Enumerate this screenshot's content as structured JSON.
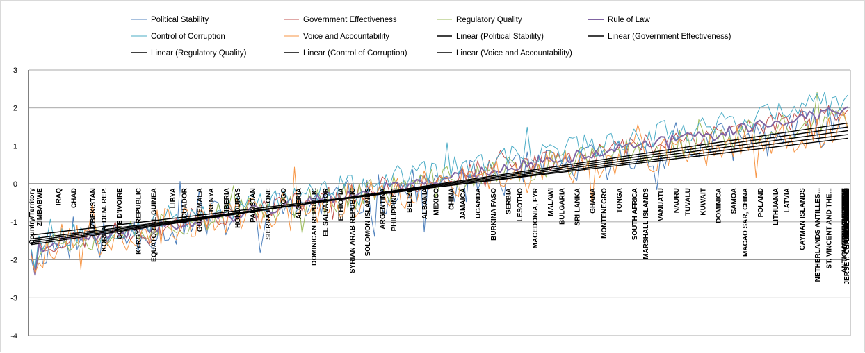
{
  "chart_data": {
    "type": "line",
    "title": "",
    "xlabel": "",
    "ylabel": "",
    "ylim": [
      -4,
      3
    ],
    "yticks": [
      3,
      2,
      1,
      0,
      -1,
      -2,
      -3,
      -4
    ],
    "grid": true,
    "legend": "top",
    "n_points": 215,
    "categories": [
      {
        "i": 0,
        "label": "Country/Territory"
      },
      {
        "i": 2,
        "label": "ZIMBABWE"
      },
      {
        "i": 7,
        "label": "IRAQ"
      },
      {
        "i": 11,
        "label": "CHAD"
      },
      {
        "i": 16,
        "label": "UZBEKISTAN"
      },
      {
        "i": 19,
        "label": "KOREA, DEM. REP."
      },
      {
        "i": 23,
        "label": "COTE D'IVOIRE"
      },
      {
        "i": 28,
        "label": "KYRGYZ REPUBLIC"
      },
      {
        "i": 32,
        "label": "EQUATORIAL GUINEA"
      },
      {
        "i": 37,
        "label": "LIBYA"
      },
      {
        "i": 40,
        "label": "ECUADOR"
      },
      {
        "i": 44,
        "label": "GUATEMALA"
      },
      {
        "i": 47,
        "label": "KENYA"
      },
      {
        "i": 51,
        "label": "LIBERIA"
      },
      {
        "i": 54,
        "label": "HONDURAS"
      },
      {
        "i": 58,
        "label": "PAKISTAN"
      },
      {
        "i": 62,
        "label": "SIERRA LEONE"
      },
      {
        "i": 66,
        "label": "TOGO"
      },
      {
        "i": 70,
        "label": "ALGERIA"
      },
      {
        "i": 74,
        "label": "DOMINICAN REPUBLIC"
      },
      {
        "i": 77,
        "label": "EL SALVADOR"
      },
      {
        "i": 81,
        "label": "ETHIOPIA"
      },
      {
        "i": 84,
        "label": "SYRIAN ARAB REPUBLIC"
      },
      {
        "i": 88,
        "label": "SOLOMON ISLANDS"
      },
      {
        "i": 92,
        "label": "ARGENTINA"
      },
      {
        "i": 95,
        "label": "PHILIPPINES"
      },
      {
        "i": 99,
        "label": "BELIZE"
      },
      {
        "i": 103,
        "label": "ALBANIA"
      },
      {
        "i": 106,
        "label": "MEXICO"
      },
      {
        "i": 110,
        "label": "CHINA"
      },
      {
        "i": 113,
        "label": "JAMAICA"
      },
      {
        "i": 117,
        "label": "UGANDA"
      },
      {
        "i": 121,
        "label": "BURKINA FASO"
      },
      {
        "i": 125,
        "label": "SERBIA"
      },
      {
        "i": 128,
        "label": "LESOTHO"
      },
      {
        "i": 132,
        "label": "MACEDONIA, FYR"
      },
      {
        "i": 136,
        "label": "MALAWI"
      },
      {
        "i": 139,
        "label": "BULGARIA"
      },
      {
        "i": 143,
        "label": "SRI LANKA"
      },
      {
        "i": 147,
        "label": "GHANA"
      },
      {
        "i": 150,
        "label": "MONTENEGRO"
      },
      {
        "i": 154,
        "label": "TONGA"
      },
      {
        "i": 158,
        "label": "SOUTH AFRICA"
      },
      {
        "i": 161,
        "label": "MARSHALL ISLANDS"
      },
      {
        "i": 165,
        "label": "VANUATU"
      },
      {
        "i": 169,
        "label": "NAURU"
      },
      {
        "i": 172,
        "label": "TUVALU"
      },
      {
        "i": 176,
        "label": "KUWAIT"
      },
      {
        "i": 180,
        "label": "DOMINICA"
      },
      {
        "i": 184,
        "label": "SAMOA"
      },
      {
        "i": 187,
        "label": "MACAO SAR, CHINA"
      },
      {
        "i": 191,
        "label": "POLAND"
      },
      {
        "i": 195,
        "label": "LITHUANIA"
      },
      {
        "i": 198,
        "label": "LATVIA"
      },
      {
        "i": 202,
        "label": "CAYMAN ISLANDS"
      },
      {
        "i": 206,
        "label": "NETHERLANDS ANTILLES..."
      },
      {
        "i": 209,
        "label": "ST. VINCENT AND THE..."
      },
      {
        "i": 213,
        "label": "ANTIGUA AND BARBUDA"
      }
    ],
    "categories_right": [
      {
        "label": "CZECH REPUBLIC"
      },
      {
        "label": "TAIWAN, CHINA"
      },
      {
        "label": "AMERICAN SAMOA"
      },
      {
        "label": "ESTONIA"
      },
      {
        "label": "JAPAN"
      },
      {
        "label": "CHILE"
      },
      {
        "label": "BELGIUM"
      },
      {
        "label": "UNITED STATES"
      },
      {
        "label": "UNITED KINGDOM"
      },
      {
        "label": "JERSEY, CHANNEL ISLANDS"
      },
      {
        "label": "SWITZERLAND"
      },
      {
        "label": "LUXEMBOURG"
      },
      {
        "label": "NORWAY"
      },
      {
        "label": "SWEDEN"
      }
    ],
    "series": [
      {
        "name": "Political Stability",
        "color": "#4f81bd",
        "width": 1,
        "start": -1.7,
        "end": 1.6,
        "amp": 0.55,
        "seed": 11
      },
      {
        "name": "Government Effectiveness",
        "color": "#c0504d",
        "width": 1,
        "start": -1.65,
        "end": 1.95,
        "amp": 0.3,
        "seed": 23
      },
      {
        "name": "Regulatory Quality",
        "color": "#9bbb59",
        "width": 1,
        "start": -1.6,
        "end": 1.7,
        "amp": 0.4,
        "seed": 37
      },
      {
        "name": "Rule of Law",
        "color": "#8064a2",
        "width": 2,
        "start": -1.7,
        "end": 1.95,
        "amp": 0.15,
        "seed": 41
      },
      {
        "name": "Control of Corruption",
        "color": "#4bacc6",
        "width": 1,
        "start": -1.55,
        "end": 2.2,
        "amp": 0.35,
        "seed": 53
      },
      {
        "name": "Voice and Accountability",
        "color": "#f79646",
        "width": 1,
        "start": -1.65,
        "end": 1.5,
        "amp": 0.5,
        "seed": 67
      }
    ],
    "trendlines": [
      {
        "name": "Linear (Political Stability)",
        "color": "#000000",
        "start": -1.45,
        "end": 1.3
      },
      {
        "name": "Linear (Government Effectiveness)",
        "color": "#000000",
        "start": -1.55,
        "end": 1.5
      },
      {
        "name": "Linear (Regulatory Quality)",
        "color": "#000000",
        "start": -1.5,
        "end": 1.4
      },
      {
        "name": "Linear (Control of Corruption)",
        "color": "#000000",
        "start": -1.6,
        "end": 1.6
      },
      {
        "name": "Linear (Voice and Accountability)",
        "color": "#000000",
        "start": -1.35,
        "end": 1.2
      }
    ]
  }
}
